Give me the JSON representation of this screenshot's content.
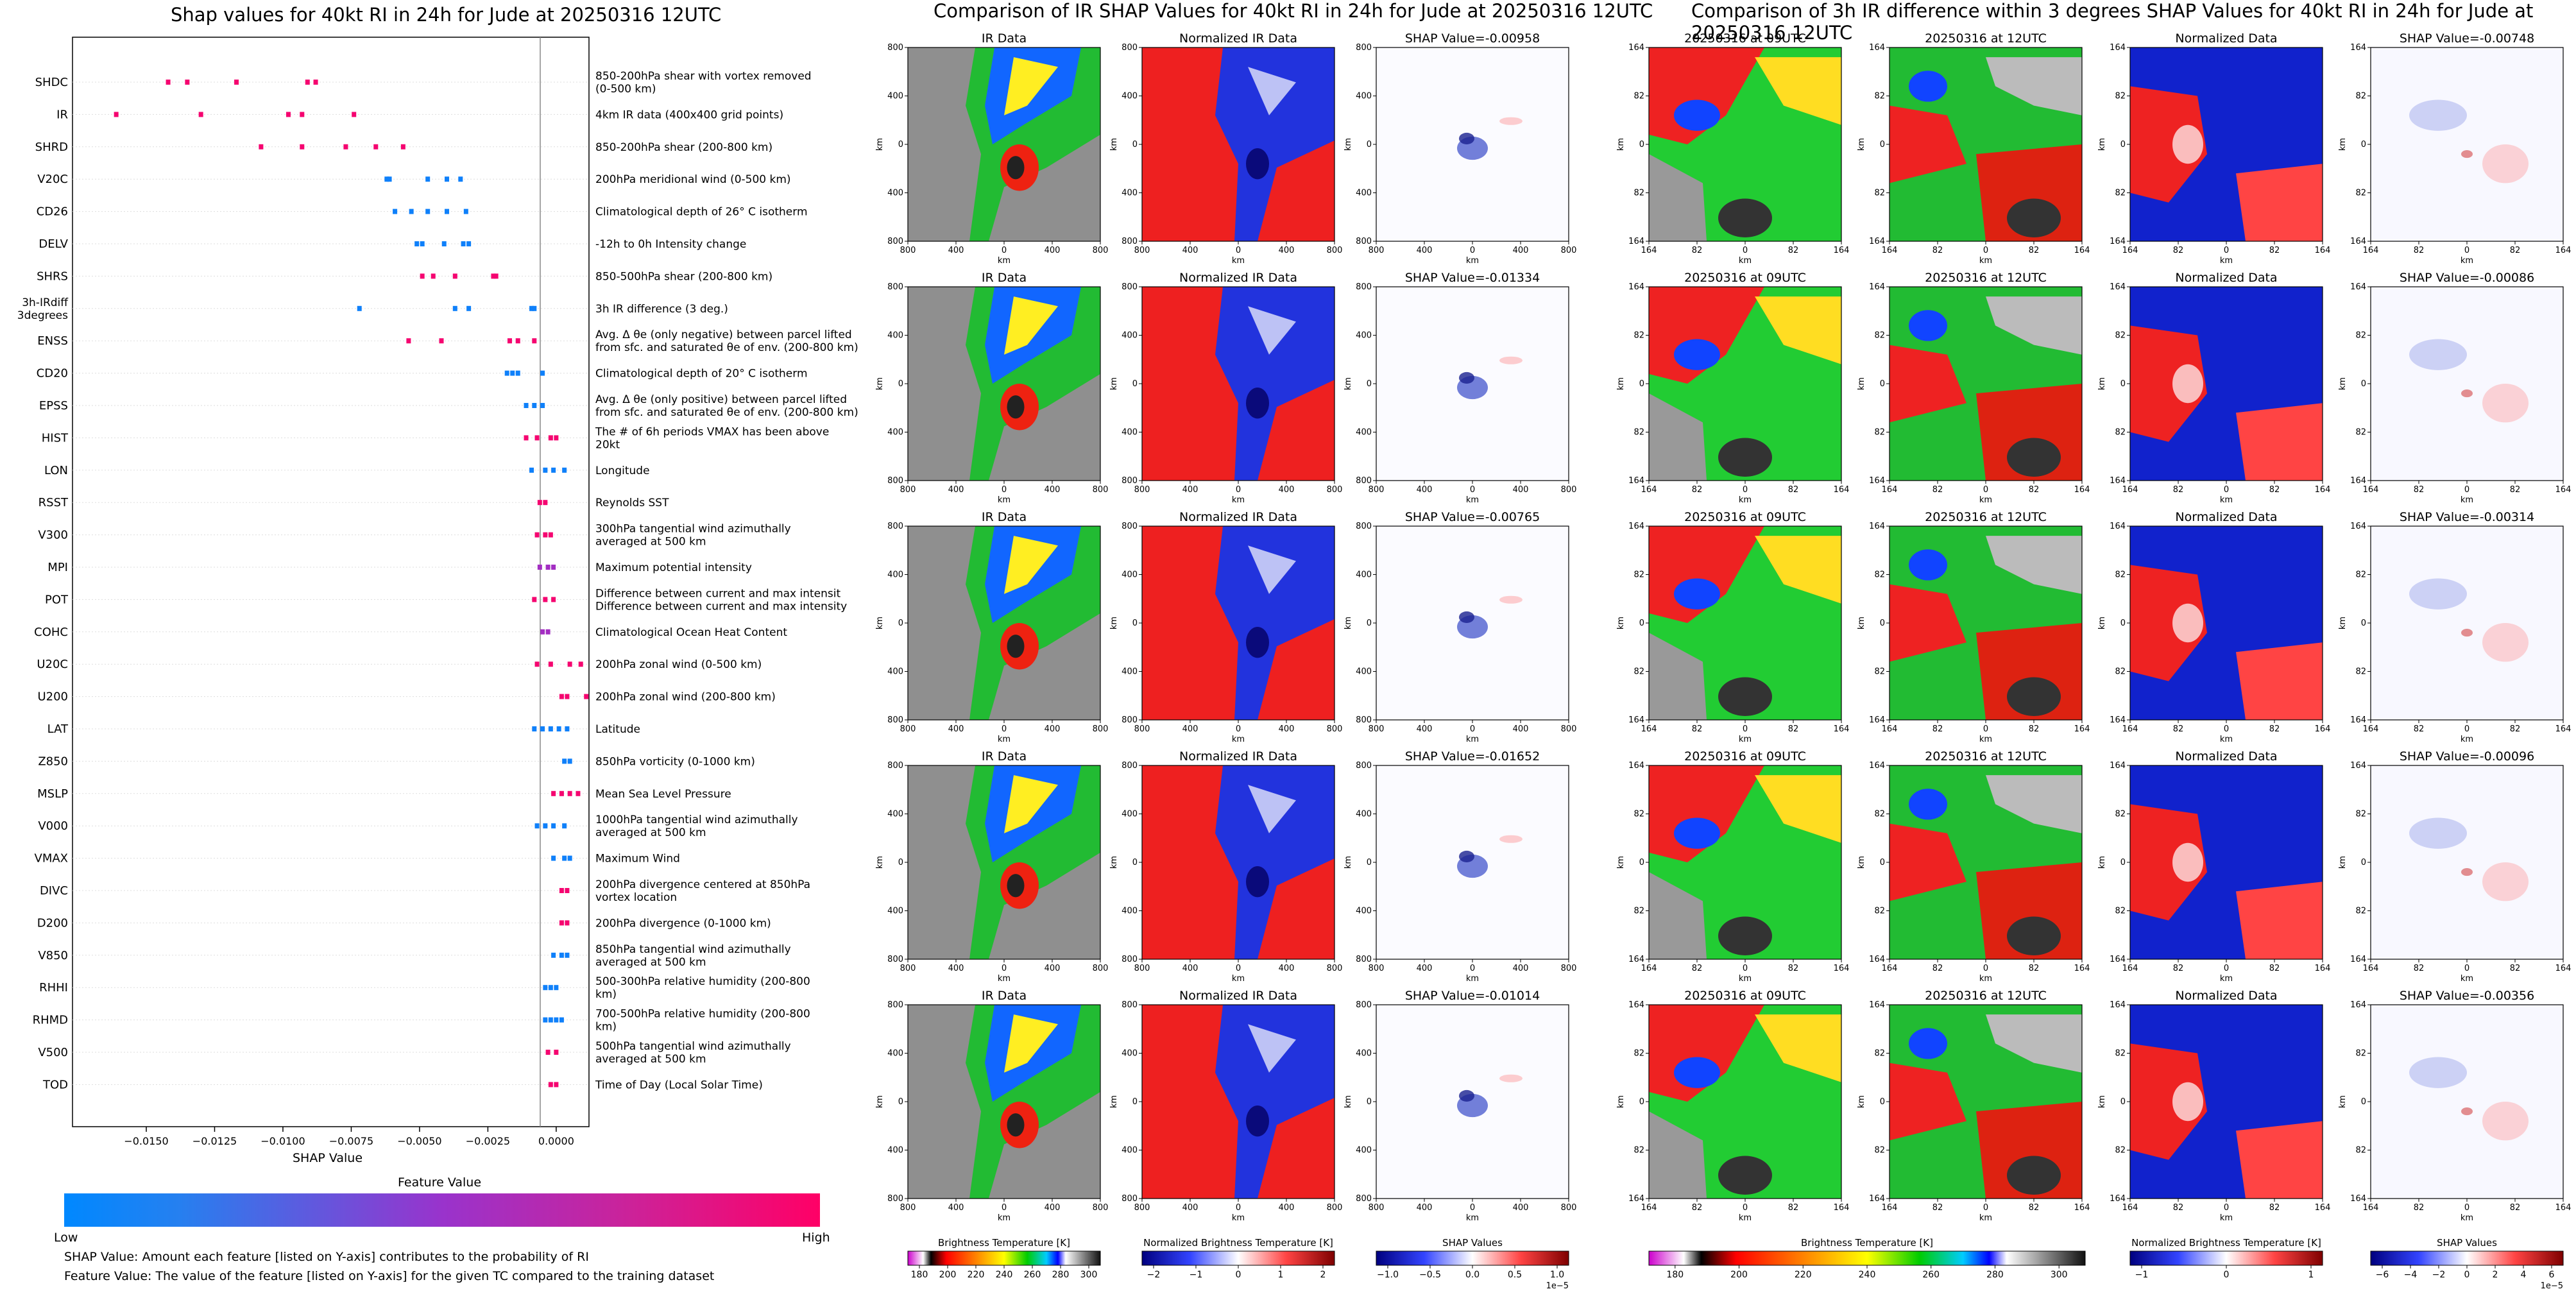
{
  "left_panel": {
    "title": "Shap values for 40kt RI in 24h for Jude at 20250316 12UTC",
    "xlabel": "SHAP Value",
    "x_ticks": [
      "-0.0150",
      "-0.0125",
      "-0.0100",
      "-0.0075",
      "-0.0050",
      "-0.0025",
      "0.0000"
    ],
    "colorbar_title": "Feature Value",
    "colorbar_low": "Low",
    "colorbar_high": "High",
    "note1": "SHAP Value: Amount each feature [listed on Y-axis] contributes to the probability of RI",
    "note2": "Feature Value: The value of the feature [listed on Y-axis] for the given TC compared to the training dataset"
  },
  "chart_data": [
    {
      "type": "scatter",
      "title": "Shap values for 40kt RI in 24h for Jude at 20250316 12UTC",
      "xlabel": "SHAP Value",
      "ylabel": "",
      "xlim": [
        -0.0177,
        0.0012
      ],
      "color_low": "#0088ff",
      "color_mid": "#9933cc",
      "color_high": "#ff0066",
      "features": [
        {
          "name": "SHDC",
          "description": "850-200hPa shear with vortex removed (0-500 km)",
          "shap": [
            -0.0142,
            -0.0135,
            -0.0117,
            -0.0091,
            -0.0088
          ],
          "value": [
            0.95,
            0.95,
            0.95,
            0.95,
            0.95
          ]
        },
        {
          "name": "IR",
          "description": "4km IR data (400x400 grid points)",
          "shap": [
            -0.0161,
            -0.013,
            -0.0098,
            -0.0093,
            -0.0074
          ],
          "value": [
            0.95,
            0.95,
            0.95,
            0.95,
            0.95
          ]
        },
        {
          "name": "SHRD",
          "description": "850-200hPa shear (200-800 km)",
          "shap": [
            -0.0108,
            -0.0093,
            -0.0077,
            -0.0066,
            -0.0056
          ],
          "value": [
            0.95,
            0.95,
            0.95,
            0.95,
            0.95
          ]
        },
        {
          "name": "V20C",
          "description": "200hPa meridional wind (0-500 km)",
          "shap": [
            -0.0062,
            -0.0061,
            -0.0047,
            -0.004,
            -0.0035
          ],
          "value": [
            0.05,
            0.05,
            0.05,
            0.05,
            0.05
          ]
        },
        {
          "name": "CD26",
          "description": "Climatological depth of 26° C isotherm",
          "shap": [
            -0.0059,
            -0.0053,
            -0.0047,
            -0.004,
            -0.0033
          ],
          "value": [
            0.05,
            0.05,
            0.05,
            0.05,
            0.05
          ]
        },
        {
          "name": "DELV",
          "description": "-12h to 0h Intensity change",
          "shap": [
            -0.0051,
            -0.0049,
            -0.0041,
            -0.0034,
            -0.0032
          ],
          "value": [
            0.05,
            0.05,
            0.05,
            0.05,
            0.05
          ]
        },
        {
          "name": "SHRS",
          "description": "850-500hPa shear (200-800 km)",
          "shap": [
            -0.0049,
            -0.0045,
            -0.0037,
            -0.0023,
            -0.0022
          ],
          "value": [
            0.95,
            0.95,
            0.95,
            0.95,
            0.95
          ]
        },
        {
          "name": "3h-IRdiff 3degrees",
          "description": "3h IR difference (3 deg.)",
          "shap": [
            -0.0072,
            -0.0037,
            -0.0032,
            -0.0009,
            -0.0008
          ],
          "value": [
            0.05,
            0.05,
            0.05,
            0.05,
            0.05
          ]
        },
        {
          "name": "ENSS",
          "description": "Avg. Δ θe (only negative) between parcel lifted from sfc. and saturated θe of env. (200-800 km)",
          "shap": [
            -0.0054,
            -0.0042,
            -0.0017,
            -0.0014,
            -0.0008
          ],
          "value": [
            0.95,
            0.95,
            0.95,
            0.95,
            0.95
          ]
        },
        {
          "name": "CD20",
          "description": "Climatological depth of 20° C isotherm",
          "shap": [
            -0.0018,
            -0.0016,
            -0.0014,
            -0.0005
          ],
          "value": [
            0.05,
            0.05,
            0.05,
            0.05
          ]
        },
        {
          "name": "EPSS",
          "description": "Avg. Δ θe (only positive) between parcel lifted from sfc. and saturated θe of env. (200-800 km)",
          "shap": [
            -0.0011,
            -0.0008,
            -0.0005
          ],
          "value": [
            0.05,
            0.05,
            0.05
          ]
        },
        {
          "name": "HIST",
          "description": "The # of 6h periods VMAX has been above 20kt",
          "shap": [
            -0.0011,
            -0.0007,
            -0.0002,
            0.0
          ],
          "value": [
            0.95,
            0.95,
            0.95,
            0.95
          ]
        },
        {
          "name": "LON",
          "description": "Longitude",
          "shap": [
            -0.0009,
            -0.0004,
            -0.0001,
            0.0003
          ],
          "value": [
            0.05,
            0.05,
            0.05,
            0.05
          ]
        },
        {
          "name": "RSST",
          "description": "Reynolds SST",
          "shap": [
            -0.0006,
            -0.0004
          ],
          "value": [
            0.95,
            0.95
          ]
        },
        {
          "name": "V300",
          "description": "300hPa tangential wind azimuthally averaged at 500 km",
          "shap": [
            -0.0007,
            -0.0004,
            -0.0002
          ],
          "value": [
            0.95,
            0.95,
            0.95
          ]
        },
        {
          "name": "MPI",
          "description": "Maximum potential intensity",
          "shap": [
            -0.0006,
            -0.0003,
            -0.0001
          ],
          "value": [
            0.55,
            0.55,
            0.55
          ]
        },
        {
          "name": "POT",
          "description": "Difference between current and max intensity",
          "shap": [
            -0.0008,
            -0.0004,
            -0.0001
          ],
          "value": [
            0.95,
            0.95,
            0.95
          ]
        },
        {
          "name": "COHC",
          "description": "Climatological Ocean Heat Content",
          "shap": [
            -0.0005,
            -0.0003
          ],
          "value": [
            0.55,
            0.55
          ]
        },
        {
          "name": "U20C",
          "description": "200hPa zonal wind (0-500 km)",
          "shap": [
            -0.0007,
            -0.0002,
            0.0005,
            0.0009
          ],
          "value": [
            0.95,
            0.95,
            0.95,
            0.95
          ]
        },
        {
          "name": "U200",
          "description": "200hPa zonal wind (200-800 km)",
          "shap": [
            0.0002,
            0.0004,
            0.0011
          ],
          "value": [
            0.95,
            0.95,
            0.95
          ]
        },
        {
          "name": "LAT",
          "description": "Latitude",
          "shap": [
            -0.0008,
            -0.0005,
            -0.0002,
            0.0001,
            0.0004
          ],
          "value": [
            0.05,
            0.05,
            0.05,
            0.05,
            0.05
          ]
        },
        {
          "name": "Z850",
          "description": "850hPa vorticity (0-1000 km)",
          "shap": [
            0.0003,
            0.0005
          ],
          "value": [
            0.05,
            0.05
          ]
        },
        {
          "name": "MSLP",
          "description": "Mean Sea Level Pressure",
          "shap": [
            -0.0001,
            0.0002,
            0.0005,
            0.0008
          ],
          "value": [
            0.95,
            0.95,
            0.95,
            0.95
          ]
        },
        {
          "name": "V000",
          "description": "1000hPa tangential wind azimuthally averaged at 500 km",
          "shap": [
            -0.0007,
            -0.0004,
            -0.0001,
            0.0003
          ],
          "value": [
            0.05,
            0.05,
            0.05,
            0.05
          ]
        },
        {
          "name": "VMAX",
          "description": "Maximum Wind",
          "shap": [
            -0.0001,
            0.0003,
            0.0005
          ],
          "value": [
            0.05,
            0.05,
            0.05
          ]
        },
        {
          "name": "DIVC",
          "description": "200hPa divergence centered at 850hPa vortex location",
          "shap": [
            0.0002,
            0.0004
          ],
          "value": [
            0.95,
            0.95
          ]
        },
        {
          "name": "D200",
          "description": "200hPa divergence (0-1000 km)",
          "shap": [
            0.0002,
            0.0004
          ],
          "value": [
            0.95,
            0.95
          ]
        },
        {
          "name": "V850",
          "description": "850hPa tangential wind azimuthally averaged at 500 km",
          "shap": [
            -0.0001,
            0.0002,
            0.0004
          ],
          "value": [
            0.05,
            0.05,
            0.05
          ]
        },
        {
          "name": "RHHI",
          "description": "500-300hPa relative humidity (200-800 km)",
          "shap": [
            -0.0004,
            -0.0002,
            0.0
          ],
          "value": [
            0.05,
            0.05,
            0.05
          ]
        },
        {
          "name": "RHMD",
          "description": "700-500hPa relative humidity (200-800 km)",
          "shap": [
            -0.0004,
            -0.0002,
            0.0,
            0.0002
          ],
          "value": [
            0.05,
            0.05,
            0.05,
            0.05
          ]
        },
        {
          "name": "V500",
          "description": "500hPa tangential wind azimuthally averaged at 500 km",
          "shap": [
            -0.0003,
            0.0
          ],
          "value": [
            0.95,
            0.95
          ]
        },
        {
          "name": "TOD",
          "description": "Time of Day (Local Solar Time)",
          "shap": [
            -0.0002,
            0.0
          ],
          "value": [
            0.95,
            0.95
          ]
        }
      ]
    },
    {
      "type": "heatmap",
      "title": "Comparison of IR SHAP Values for 40kt RI in 24h for Jude at 20250316 12UTC",
      "columns": [
        "IR Data",
        "Normalized IR Data",
        "SHAP Value"
      ],
      "axis_label": "km",
      "axis_ticks": [
        "800",
        "400",
        "0",
        "400",
        "800"
      ],
      "shap_values": [
        -0.00958,
        -0.01334,
        -0.00765,
        -0.01652,
        -0.01014
      ]
    },
    {
      "type": "heatmap",
      "title": "Comparison of 3h IR difference within 3 degrees SHAP Values for 40kt RI in 24h for Jude at 20250316 12UTC",
      "columns": [
        "20250316 at 09UTC",
        "20250316 at 12UTC",
        "Normalized Data",
        "SHAP Value"
      ],
      "axis_label": "km",
      "axis_ticks": [
        "164",
        "82",
        "0",
        "82",
        "164"
      ],
      "shap_values": [
        -0.00748,
        -0.00086,
        -0.00314,
        -0.00096,
        -0.00356
      ]
    }
  ],
  "middle_panel": {
    "title": "Comparison of IR SHAP Values for 40kt RI in 24h for Jude at 20250316 12UTC",
    "col_ir": "IR Data",
    "col_norm": "Normalized IR Data",
    "shap_prefix": "SHAP Value=",
    "axis_label": "km",
    "ticks": [
      "800",
      "400",
      "0",
      "400",
      "800"
    ],
    "rows": [
      {
        "shap_label": "-0.00958"
      },
      {
        "shap_label": "-0.01334"
      },
      {
        "shap_label": "-0.00765"
      },
      {
        "shap_label": "-0.01652"
      },
      {
        "shap_label": "-0.01014"
      }
    ],
    "cb1_label": "Brightness Temperature [K]",
    "cb1_ticks": [
      "180",
      "200",
      "220",
      "240",
      "260",
      "280",
      "300"
    ],
    "cb2_label": "Normalized Brightness Temperature [K]",
    "cb2_ticks": [
      "−2",
      "−1",
      "0",
      "1",
      "2"
    ],
    "cb3_label": "SHAP Values",
    "cb3_ticks": [
      "−1.0",
      "−0.5",
      "0.0",
      "0.5",
      "1.0"
    ],
    "cb3_exp": "1e−5"
  },
  "right_panel": {
    "title": "Comparison of 3h IR difference within 3 degrees SHAP Values for 40kt RI in 24h for Jude at 20250316 12UTC",
    "col_09": "20250316 at 09UTC",
    "col_12": "20250316 at 12UTC",
    "col_norm": "Normalized Data",
    "shap_prefix": "SHAP Value=",
    "axis_label": "km",
    "ticks": [
      "164",
      "82",
      "0",
      "82",
      "164"
    ],
    "rows": [
      {
        "shap_label": "-0.00748"
      },
      {
        "shap_label": "-0.00086"
      },
      {
        "shap_label": "-0.00314"
      },
      {
        "shap_label": "-0.00096"
      },
      {
        "shap_label": "-0.00356"
      }
    ],
    "cb1_label": "Brightness Temperature [K]",
    "cb1_ticks": [
      "180",
      "200",
      "220",
      "240",
      "260",
      "280",
      "300"
    ],
    "cb2_label": "Normalized Brightness Temperature [K]",
    "cb2_ticks": [
      "−1",
      "0",
      "1"
    ],
    "cb3_label": "SHAP Values",
    "cb3_ticks": [
      "−6",
      "−4",
      "−2",
      "0",
      "2",
      "4",
      "6"
    ],
    "cb3_exp": "1e−5"
  }
}
